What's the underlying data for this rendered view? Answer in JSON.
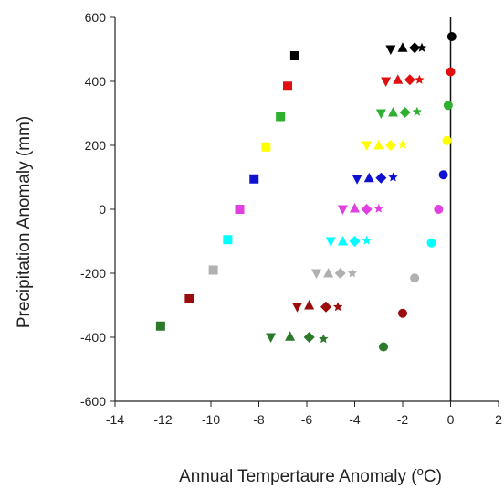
{
  "chart_data": {
    "type": "scatter",
    "xlabel": "Annual Tempertaure Anomaly (",
    "xlabel_sup": "o",
    "xlabel_end": "C)",
    "ylabel": "Precipitation Anomaly (mm)",
    "xlim": [
      -14,
      2
    ],
    "ylim": [
      -600,
      600
    ],
    "xticks": [
      -14,
      -12,
      -10,
      -8,
      -6,
      -4,
      -2,
      0,
      2
    ],
    "yticks": [
      -600,
      -400,
      -200,
      0,
      200,
      400,
      600
    ],
    "grid": false,
    "vertical_reference_line_x": 0,
    "colors": {
      "black": "#000000",
      "red": "#e01010",
      "green": "#30b030",
      "yellow": "#ffff00",
      "blue": "#1010d0",
      "magenta": "#e040e0",
      "cyan": "#00ffff",
      "gray": "#b0b0b0",
      "darkred": "#9b0d0d",
      "darkgreen": "#2a7a2a"
    },
    "series": [
      {
        "color": "black",
        "points": [
          {
            "x": -6.5,
            "y": 480,
            "marker": "square"
          },
          {
            "x": -2.5,
            "y": 500,
            "marker": "triangle-down"
          },
          {
            "x": -2.0,
            "y": 505,
            "marker": "triangle-up"
          },
          {
            "x": -1.5,
            "y": 505,
            "marker": "diamond"
          },
          {
            "x": -1.2,
            "y": 505,
            "marker": "star"
          },
          {
            "x": 0.05,
            "y": 540,
            "marker": "circle"
          }
        ]
      },
      {
        "color": "red",
        "points": [
          {
            "x": -6.8,
            "y": 385,
            "marker": "square"
          },
          {
            "x": -2.7,
            "y": 400,
            "marker": "triangle-down"
          },
          {
            "x": -2.2,
            "y": 405,
            "marker": "triangle-up"
          },
          {
            "x": -1.7,
            "y": 405,
            "marker": "diamond"
          },
          {
            "x": -1.3,
            "y": 405,
            "marker": "star"
          },
          {
            "x": 0.0,
            "y": 430,
            "marker": "circle"
          }
        ]
      },
      {
        "color": "green",
        "points": [
          {
            "x": -7.1,
            "y": 290,
            "marker": "square"
          },
          {
            "x": -2.9,
            "y": 300,
            "marker": "triangle-down"
          },
          {
            "x": -2.4,
            "y": 303,
            "marker": "triangle-up"
          },
          {
            "x": -1.9,
            "y": 303,
            "marker": "diamond"
          },
          {
            "x": -1.4,
            "y": 305,
            "marker": "star"
          },
          {
            "x": -0.1,
            "y": 325,
            "marker": "circle"
          }
        ]
      },
      {
        "color": "yellow",
        "points": [
          {
            "x": -7.7,
            "y": 195,
            "marker": "square"
          },
          {
            "x": -3.5,
            "y": 200,
            "marker": "triangle-down"
          },
          {
            "x": -3.0,
            "y": 200,
            "marker": "triangle-up"
          },
          {
            "x": -2.5,
            "y": 200,
            "marker": "diamond"
          },
          {
            "x": -2.0,
            "y": 202,
            "marker": "star"
          },
          {
            "x": -0.15,
            "y": 215,
            "marker": "circle"
          }
        ]
      },
      {
        "color": "blue",
        "points": [
          {
            "x": -8.2,
            "y": 95,
            "marker": "square"
          },
          {
            "x": -3.9,
            "y": 95,
            "marker": "triangle-down"
          },
          {
            "x": -3.4,
            "y": 98,
            "marker": "triangle-up"
          },
          {
            "x": -2.9,
            "y": 98,
            "marker": "diamond"
          },
          {
            "x": -2.4,
            "y": 100,
            "marker": "star"
          },
          {
            "x": -0.3,
            "y": 108,
            "marker": "circle"
          }
        ]
      },
      {
        "color": "magenta",
        "points": [
          {
            "x": -8.8,
            "y": 0,
            "marker": "square"
          },
          {
            "x": -4.5,
            "y": 0,
            "marker": "triangle-down"
          },
          {
            "x": -4.0,
            "y": 3,
            "marker": "triangle-up"
          },
          {
            "x": -3.5,
            "y": 0,
            "marker": "diamond"
          },
          {
            "x": -3.0,
            "y": 2,
            "marker": "star"
          },
          {
            "x": -0.5,
            "y": 0,
            "marker": "circle"
          }
        ]
      },
      {
        "color": "cyan",
        "points": [
          {
            "x": -9.3,
            "y": -95,
            "marker": "square"
          },
          {
            "x": -5.0,
            "y": -100,
            "marker": "triangle-down"
          },
          {
            "x": -4.5,
            "y": -100,
            "marker": "triangle-up"
          },
          {
            "x": -4.0,
            "y": -100,
            "marker": "diamond"
          },
          {
            "x": -3.5,
            "y": -98,
            "marker": "star"
          },
          {
            "x": -0.8,
            "y": -105,
            "marker": "circle"
          }
        ]
      },
      {
        "color": "gray",
        "points": [
          {
            "x": -9.9,
            "y": -190,
            "marker": "square"
          },
          {
            "x": -5.6,
            "y": -200,
            "marker": "triangle-down"
          },
          {
            "x": -5.1,
            "y": -200,
            "marker": "triangle-up"
          },
          {
            "x": -4.6,
            "y": -200,
            "marker": "diamond"
          },
          {
            "x": -4.1,
            "y": -200,
            "marker": "star"
          },
          {
            "x": -1.5,
            "y": -215,
            "marker": "circle"
          }
        ]
      },
      {
        "color": "darkred",
        "points": [
          {
            "x": -10.9,
            "y": -280,
            "marker": "square"
          },
          {
            "x": -6.4,
            "y": -305,
            "marker": "triangle-down"
          },
          {
            "x": -5.9,
            "y": -300,
            "marker": "triangle-up"
          },
          {
            "x": -5.2,
            "y": -305,
            "marker": "diamond"
          },
          {
            "x": -4.7,
            "y": -305,
            "marker": "star"
          },
          {
            "x": -2.0,
            "y": -325,
            "marker": "circle"
          }
        ]
      },
      {
        "color": "darkgreen",
        "points": [
          {
            "x": -12.1,
            "y": -365,
            "marker": "square"
          },
          {
            "x": -7.5,
            "y": -400,
            "marker": "triangle-down"
          },
          {
            "x": -6.7,
            "y": -398,
            "marker": "triangle-up"
          },
          {
            "x": -5.9,
            "y": -400,
            "marker": "diamond"
          },
          {
            "x": -5.3,
            "y": -405,
            "marker": "star"
          },
          {
            "x": -2.8,
            "y": -430,
            "marker": "circle"
          }
        ]
      }
    ]
  }
}
